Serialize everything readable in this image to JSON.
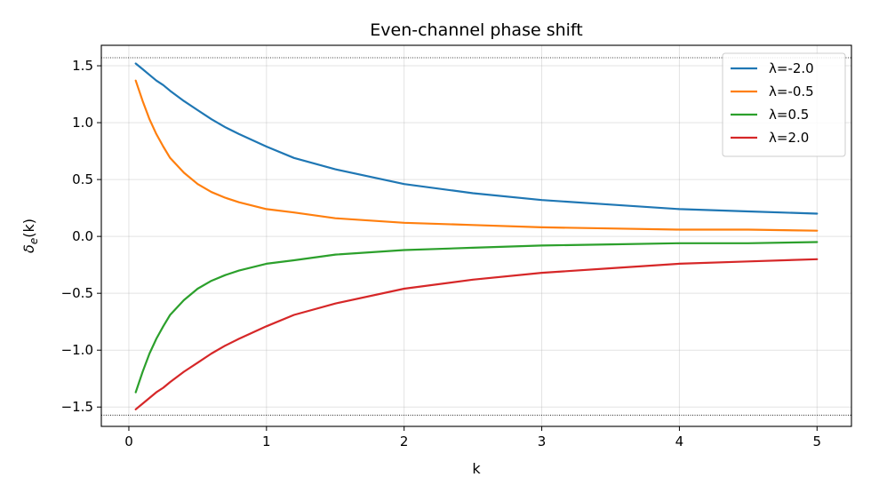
{
  "chart_data": {
    "type": "line",
    "title": "Even-channel phase shift",
    "xlabel": "k",
    "ylabel": "δe(k)",
    "ylabel_main": "δ",
    "ylabel_sub": "e",
    "ylabel_tail": "(k)",
    "xlim": [
      -0.2,
      5.25
    ],
    "ylim": [
      -1.67,
      1.68
    ],
    "xticks": [
      0,
      1,
      2,
      3,
      4,
      5
    ],
    "xtick_labels": [
      "0",
      "1",
      "2",
      "3",
      "4",
      "5"
    ],
    "yticks": [
      1.5,
      1.0,
      0.5,
      0.0,
      -0.5,
      -1.0,
      -1.5
    ],
    "ytick_labels": [
      "1.5",
      "1.0",
      "0.5",
      "0.0",
      "−0.5",
      "−1.0",
      "−1.5"
    ],
    "grid": true,
    "reference_lines": [
      1.5708,
      -1.5708
    ],
    "legend_position": "top-right",
    "x": [
      0.05,
      0.1,
      0.15,
      0.2,
      0.25,
      0.3,
      0.4,
      0.5,
      0.6,
      0.7,
      0.8,
      1.0,
      1.2,
      1.5,
      2.0,
      2.5,
      3.0,
      3.5,
      4.0,
      4.5,
      5.0
    ],
    "series": [
      {
        "name": "λ=-2.0",
        "color": "#1f77b4",
        "values": [
          1.52,
          1.47,
          1.42,
          1.37,
          1.33,
          1.28,
          1.19,
          1.11,
          1.03,
          0.96,
          0.9,
          0.79,
          0.69,
          0.59,
          0.46,
          0.38,
          0.32,
          0.28,
          0.24,
          0.22,
          0.2
        ]
      },
      {
        "name": "λ=-0.5",
        "color": "#ff7f0e",
        "values": [
          1.37,
          1.19,
          1.03,
          0.9,
          0.79,
          0.69,
          0.56,
          0.46,
          0.39,
          0.34,
          0.3,
          0.24,
          0.21,
          0.16,
          0.12,
          0.1,
          0.08,
          0.07,
          0.06,
          0.06,
          0.05
        ]
      },
      {
        "name": "λ=0.5",
        "color": "#2ca02c",
        "values": [
          -1.37,
          -1.19,
          -1.03,
          -0.9,
          -0.79,
          -0.69,
          -0.56,
          -0.46,
          -0.39,
          -0.34,
          -0.3,
          -0.24,
          -0.21,
          -0.16,
          -0.12,
          -0.1,
          -0.08,
          -0.07,
          -0.06,
          -0.06,
          -0.05
        ]
      },
      {
        "name": "λ=2.0",
        "color": "#d62728",
        "values": [
          -1.52,
          -1.47,
          -1.42,
          -1.37,
          -1.33,
          -1.28,
          -1.19,
          -1.11,
          -1.03,
          -0.96,
          -0.9,
          -0.79,
          -0.69,
          -0.59,
          -0.46,
          -0.38,
          -0.32,
          -0.28,
          -0.24,
          -0.22,
          -0.2
        ]
      }
    ]
  }
}
